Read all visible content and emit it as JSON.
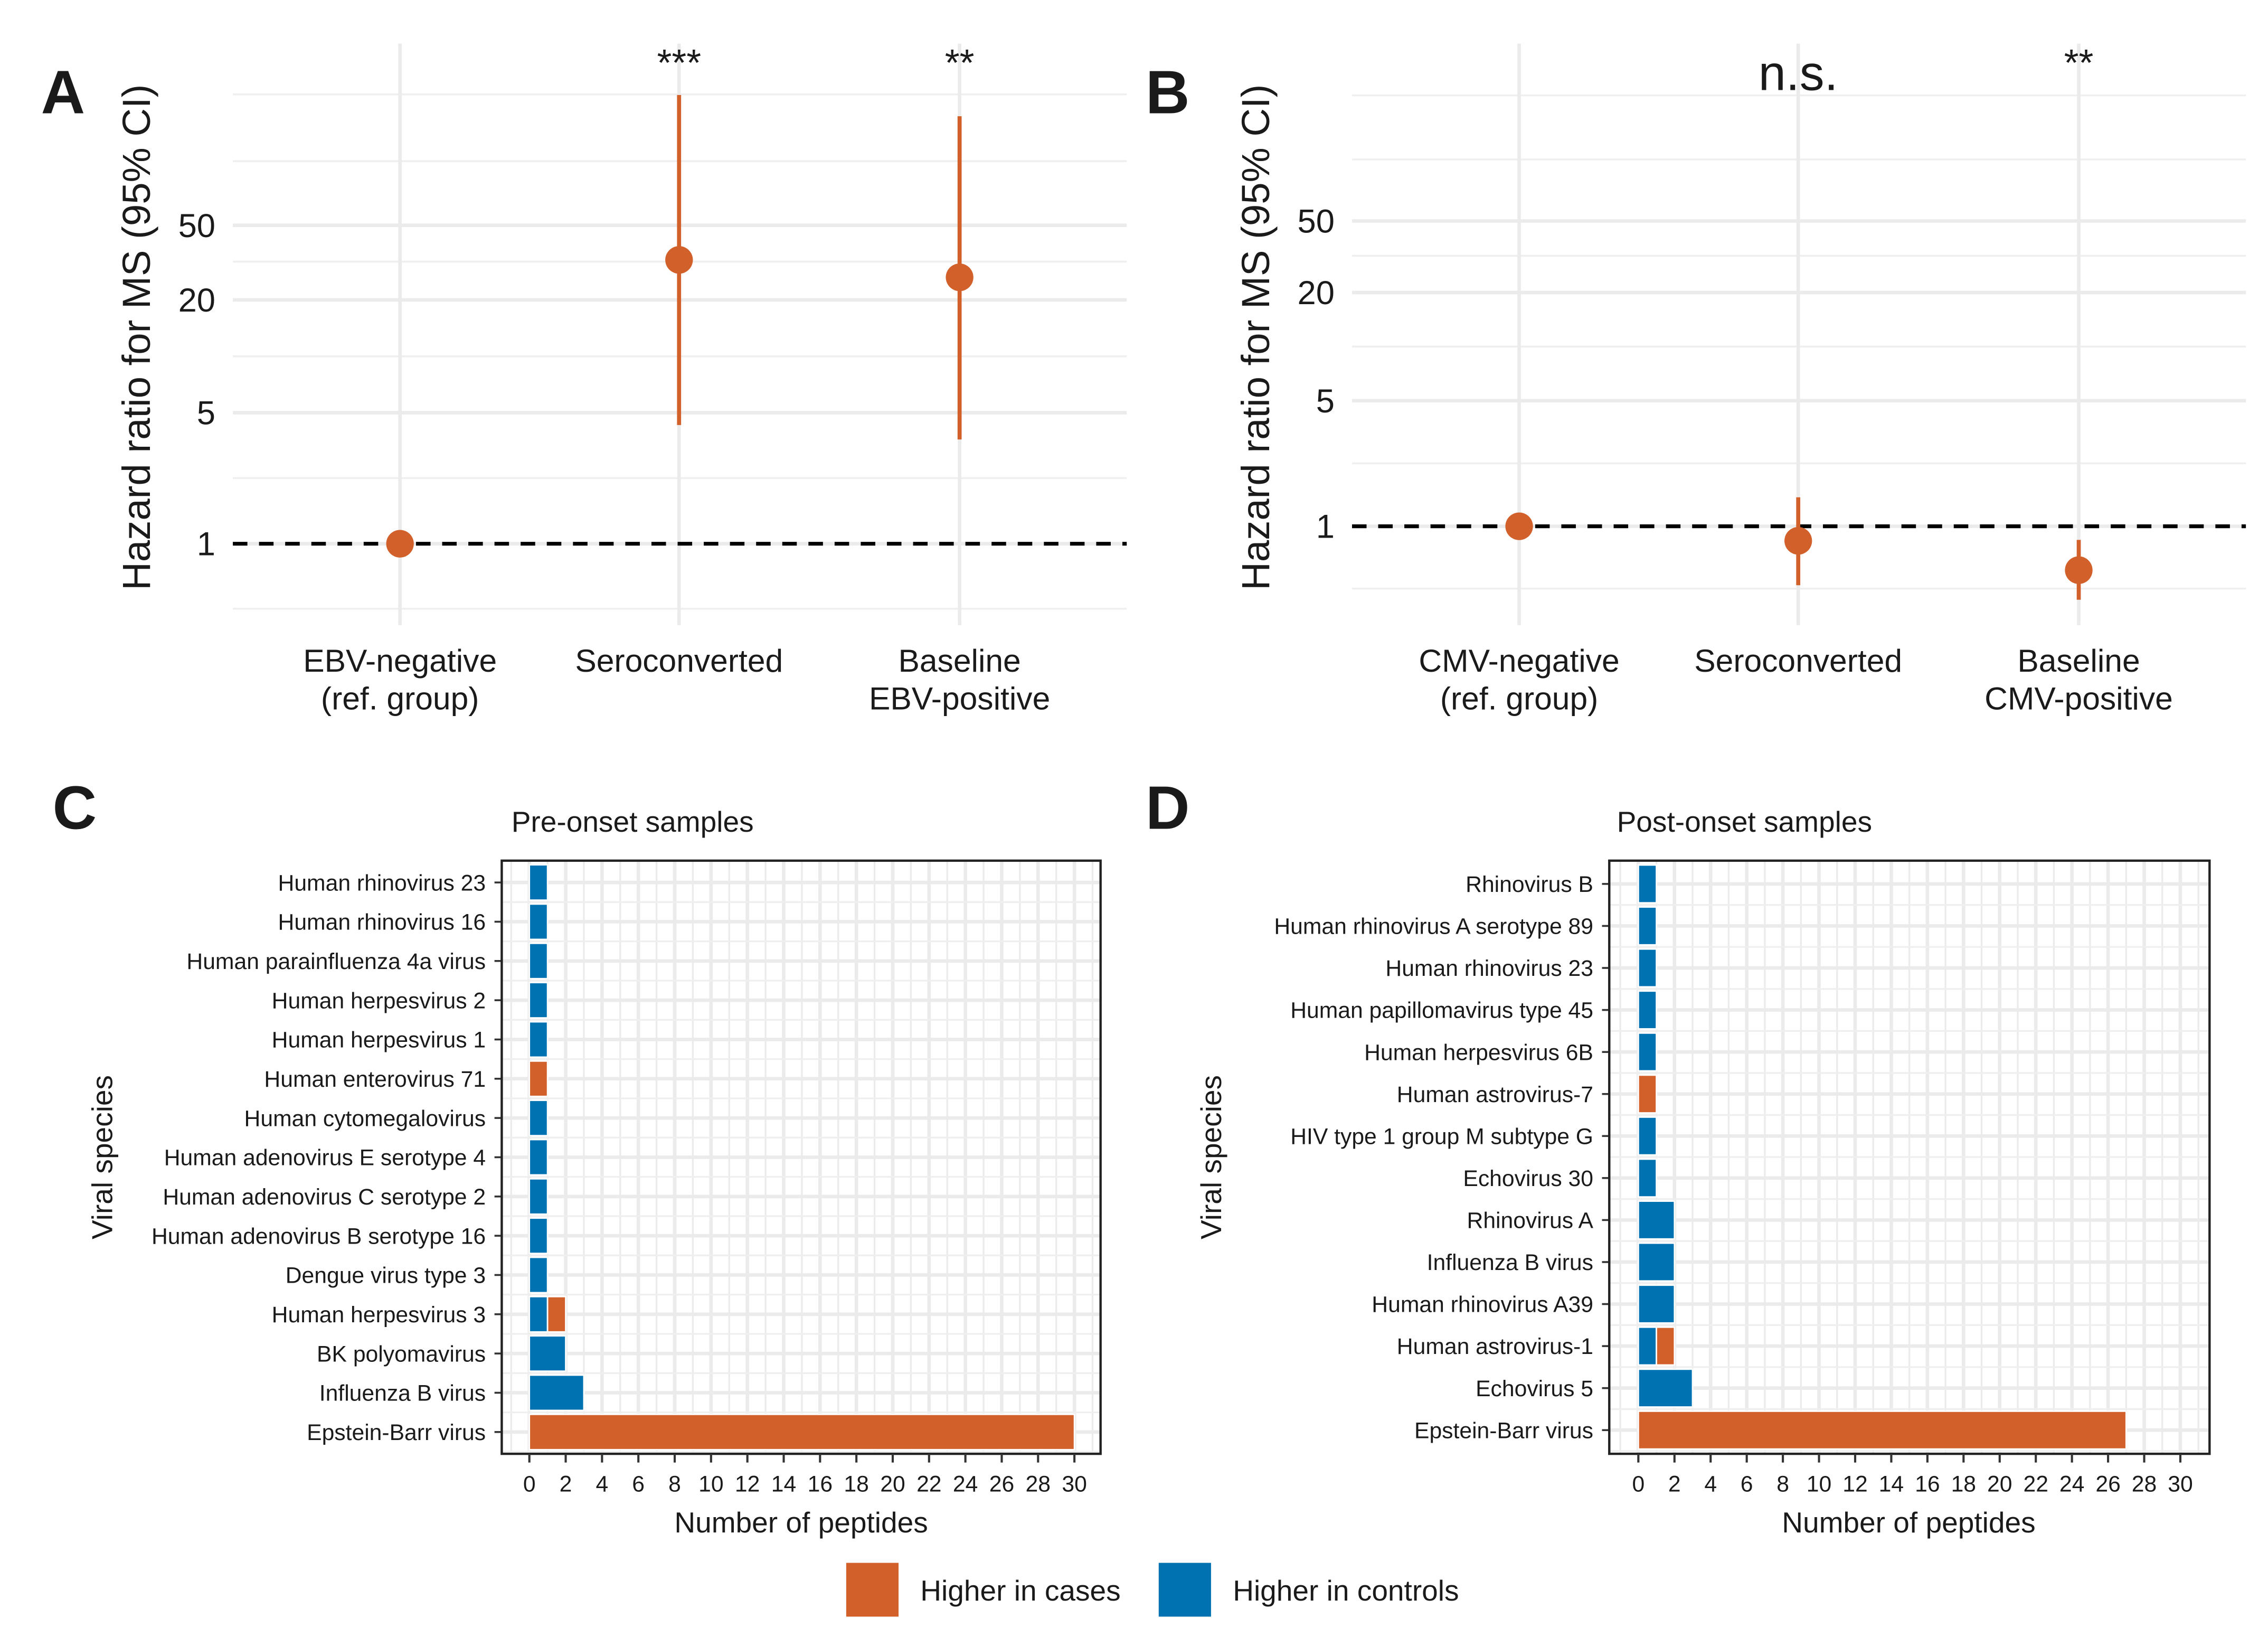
{
  "colors": {
    "cases": "#D2602A",
    "controls": "#0072B2",
    "grid": "#EBEBEB"
  },
  "chart_data": [
    {
      "panel": "A",
      "type": "scatter",
      "ylabel": "Hazard ratio for MS (95% CI)",
      "yscale": "log10",
      "yticks": [
        1,
        5,
        20,
        50
      ],
      "ytick_labels": [
        "1",
        "5",
        "20",
        "50"
      ],
      "ylim": [
        0.4,
        300
      ],
      "reference_line": 1,
      "categories": [
        {
          "label": [
            "EBV-negative",
            "(ref. group)"
          ],
          "hr": 1,
          "ci": null,
          "sig": ""
        },
        {
          "label": [
            "Seroconverted"
          ],
          "hr": 32.7,
          "ci": [
            4.3,
            248
          ],
          "sig": "***"
        },
        {
          "label": [
            "Baseline",
            "EBV-positive"
          ],
          "hr": 26.4,
          "ci": [
            3.6,
            191
          ],
          "sig": "**"
        }
      ]
    },
    {
      "panel": "B",
      "type": "scatter",
      "ylabel": "Hazard ratio for MS (95% CI)",
      "yscale": "log10",
      "yticks": [
        1,
        5,
        20,
        50
      ],
      "ytick_labels": [
        "1",
        "5",
        "20",
        "50"
      ],
      "ylim": [
        0.4,
        300
      ],
      "reference_line": 1,
      "categories": [
        {
          "label": [
            "CMV-negative",
            "(ref. group)"
          ],
          "hr": 1,
          "ci": null,
          "sig": ""
        },
        {
          "label": [
            "Seroconverted"
          ],
          "hr": 0.83,
          "ci": [
            0.47,
            1.45
          ],
          "sig": "n.s."
        },
        {
          "label": [
            "Baseline",
            "CMV-positive"
          ],
          "hr": 0.57,
          "ci": [
            0.39,
            0.84
          ],
          "sig": "**"
        }
      ]
    },
    {
      "panel": "C",
      "type": "bar",
      "orientation": "horizontal",
      "stacked": true,
      "title": "Pre-onset samples",
      "xlabel": "Number of peptides",
      "ylabel": "Viral species",
      "xlim": [
        0,
        30
      ],
      "xticks": [
        0,
        2,
        4,
        6,
        8,
        10,
        12,
        14,
        16,
        18,
        20,
        22,
        24,
        26,
        28,
        30
      ],
      "categories": [
        "Human rhinovirus 23",
        "Human rhinovirus 16",
        "Human parainfluenza 4a virus",
        "Human herpesvirus 2",
        "Human herpesvirus 1",
        "Human enterovirus 71",
        "Human cytomegalovirus",
        "Human adenovirus E serotype 4",
        "Human adenovirus C serotype 2",
        "Human adenovirus B serotype 16",
        "Dengue virus type 3",
        "Human herpesvirus 3",
        "BK polyomavirus",
        "Influenza B virus",
        "Epstein-Barr virus"
      ],
      "series": [
        {
          "name": "Higher in controls",
          "values": [
            1,
            1,
            1,
            1,
            1,
            0,
            1,
            1,
            1,
            1,
            1,
            1,
            2,
            3,
            0
          ]
        },
        {
          "name": "Higher in cases",
          "values": [
            0,
            0,
            0,
            0,
            0,
            1,
            0,
            0,
            0,
            0,
            0,
            1,
            0,
            0,
            30
          ]
        }
      ]
    },
    {
      "panel": "D",
      "type": "bar",
      "orientation": "horizontal",
      "stacked": true,
      "title": "Post-onset samples",
      "xlabel": "Number of peptides",
      "ylabel": "Viral species",
      "xlim": [
        0,
        30
      ],
      "xticks": [
        0,
        2,
        4,
        6,
        8,
        10,
        12,
        14,
        16,
        18,
        20,
        22,
        24,
        26,
        28,
        30
      ],
      "categories": [
        "Rhinovirus B",
        "Human rhinovirus A serotype 89",
        "Human rhinovirus 23",
        "Human papillomavirus type 45",
        "Human herpesvirus 6B",
        "Human astrovirus-7",
        "HIV type 1 group M subtype G",
        "Echovirus 30",
        "Rhinovirus A",
        "Influenza B virus",
        "Human rhinovirus A39",
        "Human astrovirus-1",
        "Echovirus 5",
        "Epstein-Barr virus"
      ],
      "series": [
        {
          "name": "Higher in controls",
          "values": [
            1,
            1,
            1,
            1,
            1,
            0,
            1,
            1,
            2,
            2,
            2,
            1,
            3,
            0
          ]
        },
        {
          "name": "Higher in cases",
          "values": [
            0,
            0,
            0,
            0,
            0,
            1,
            0,
            0,
            0,
            0,
            0,
            1,
            0,
            27
          ]
        }
      ]
    }
  ],
  "legend": {
    "items": [
      {
        "label": "Higher in cases",
        "key": "cases"
      },
      {
        "label": "Higher in controls",
        "key": "controls"
      }
    ]
  }
}
